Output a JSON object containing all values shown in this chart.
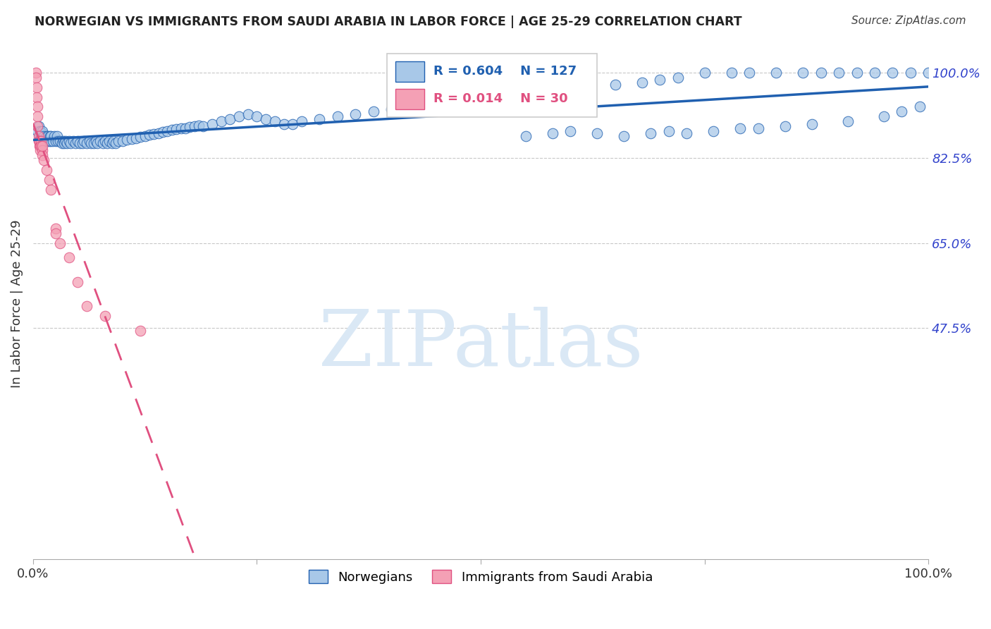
{
  "title": "NORWEGIAN VS IMMIGRANTS FROM SAUDI ARABIA IN LABOR FORCE | AGE 25-29 CORRELATION CHART",
  "source": "Source: ZipAtlas.com",
  "ylabel": "In Labor Force | Age 25-29",
  "xlim": [
    0.0,
    1.0
  ],
  "ylim": [
    0.0,
    1.05
  ],
  "yticks": [
    0.475,
    0.65,
    0.825,
    1.0
  ],
  "ytick_labels": [
    "47.5%",
    "65.0%",
    "82.5%",
    "100.0%"
  ],
  "norwegian_R": 0.604,
  "norwegian_N": 127,
  "saudi_R": 0.014,
  "saudi_N": 30,
  "legend_label_1": "Norwegians",
  "legend_label_2": "Immigrants from Saudi Arabia",
  "norwegian_color": "#a8c8e8",
  "saudi_color": "#f4a0b5",
  "norwegian_line_color": "#2060b0",
  "saudi_line_color": "#e05080",
  "background_color": "#ffffff",
  "grid_color": "#c8c8c8",
  "title_color": "#222222",
  "right_tick_color": "#3344cc",
  "watermark_color": "#dae8f5",
  "watermark_text": "ZIPatlas",
  "nor_x": [
    0.005,
    0.006,
    0.007,
    0.008,
    0.009,
    0.01,
    0.01,
    0.012,
    0.013,
    0.015,
    0.016,
    0.017,
    0.018,
    0.019,
    0.02,
    0.02,
    0.022,
    0.024,
    0.025,
    0.027,
    0.028,
    0.03,
    0.032,
    0.034,
    0.035,
    0.036,
    0.038,
    0.04,
    0.042,
    0.045,
    0.047,
    0.05,
    0.052,
    0.055,
    0.057,
    0.06,
    0.063,
    0.065,
    0.068,
    0.07,
    0.072,
    0.075,
    0.078,
    0.08,
    0.083,
    0.085,
    0.088,
    0.09,
    0.092,
    0.095,
    0.1,
    0.105,
    0.11,
    0.115,
    0.12,
    0.125,
    0.13,
    0.135,
    0.14,
    0.145,
    0.15,
    0.155,
    0.16,
    0.165,
    0.17,
    0.175,
    0.18,
    0.185,
    0.19,
    0.2,
    0.21,
    0.22,
    0.23,
    0.24,
    0.25,
    0.26,
    0.27,
    0.28,
    0.29,
    0.3,
    0.32,
    0.34,
    0.36,
    0.38,
    0.4,
    0.42,
    0.44,
    0.46,
    0.48,
    0.5,
    0.53,
    0.56,
    0.59,
    0.62,
    0.65,
    0.68,
    0.7,
    0.72,
    0.75,
    0.78,
    0.8,
    0.83,
    0.86,
    0.88,
    0.9,
    0.92,
    0.94,
    0.96,
    0.98,
    1.0,
    0.55,
    0.58,
    0.6,
    0.63,
    0.66,
    0.69,
    0.71,
    0.73,
    0.76,
    0.79,
    0.81,
    0.84,
    0.87,
    0.91,
    0.95,
    0.97,
    0.99
  ],
  "nor_y": [
    0.88,
    0.89,
    0.87,
    0.88,
    0.87,
    0.875,
    0.88,
    0.87,
    0.86,
    0.87,
    0.86,
    0.87,
    0.86,
    0.87,
    0.86,
    0.87,
    0.86,
    0.87,
    0.86,
    0.87,
    0.86,
    0.86,
    0.855,
    0.86,
    0.855,
    0.86,
    0.855,
    0.86,
    0.855,
    0.86,
    0.855,
    0.86,
    0.855,
    0.855,
    0.86,
    0.855,
    0.86,
    0.855,
    0.855,
    0.86,
    0.855,
    0.86,
    0.855,
    0.86,
    0.855,
    0.86,
    0.855,
    0.86,
    0.855,
    0.86,
    0.86,
    0.862,
    0.864,
    0.866,
    0.868,
    0.87,
    0.872,
    0.874,
    0.876,
    0.878,
    0.88,
    0.882,
    0.884,
    0.885,
    0.886,
    0.888,
    0.89,
    0.892,
    0.89,
    0.895,
    0.9,
    0.905,
    0.91,
    0.915,
    0.91,
    0.905,
    0.9,
    0.895,
    0.895,
    0.9,
    0.905,
    0.91,
    0.915,
    0.92,
    0.925,
    0.93,
    0.935,
    0.94,
    0.945,
    0.95,
    0.955,
    0.96,
    0.965,
    0.97,
    0.975,
    0.98,
    0.985,
    0.99,
    1.0,
    1.0,
    1.0,
    1.0,
    1.0,
    1.0,
    1.0,
    1.0,
    1.0,
    1.0,
    1.0,
    1.0,
    0.87,
    0.875,
    0.88,
    0.875,
    0.87,
    0.875,
    0.88,
    0.875,
    0.88,
    0.885,
    0.885,
    0.89,
    0.895,
    0.9,
    0.91,
    0.92,
    0.93
  ],
  "saudi_x": [
    0.003,
    0.003,
    0.004,
    0.004,
    0.005,
    0.005,
    0.005,
    0.006,
    0.006,
    0.007,
    0.007,
    0.008,
    0.008,
    0.009,
    0.009,
    0.01,
    0.01,
    0.01,
    0.012,
    0.015,
    0.018,
    0.02,
    0.025,
    0.025,
    0.03,
    0.04,
    0.05,
    0.06,
    0.08,
    0.12
  ],
  "saudi_y": [
    1.0,
    0.99,
    0.97,
    0.95,
    0.93,
    0.91,
    0.89,
    0.87,
    0.86,
    0.85,
    0.86,
    0.85,
    0.84,
    0.86,
    0.85,
    0.84,
    0.83,
    0.85,
    0.82,
    0.8,
    0.78,
    0.76,
    0.68,
    0.67,
    0.65,
    0.62,
    0.57,
    0.52,
    0.5,
    0.47
  ]
}
